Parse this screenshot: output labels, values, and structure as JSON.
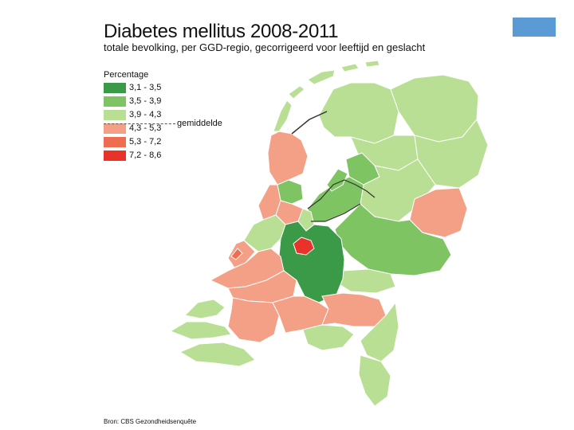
{
  "title": "Diabetes mellitus 2008-2011",
  "subtitle": "totale bevolking, per GGD-regio, gecorrigeerd voor leeftijd en geslacht",
  "legend": {
    "title": "Percentage",
    "items": [
      {
        "label": "3,1 - 3,5",
        "color": "#3a9a47"
      },
      {
        "label": "3,5 - 3,9",
        "color": "#7fc463"
      },
      {
        "label": "3,9 - 4,3",
        "color": "#b8df93"
      },
      {
        "label": "4,3 - 5,3",
        "color": "#f4a086"
      },
      {
        "label": "5,3 - 7,2",
        "color": "#ee6c50"
      },
      {
        "label": "7,2 - 8,6",
        "color": "#e8322a"
      }
    ],
    "average_label": "gemiddelde"
  },
  "source": "Bron: CBS Gezondheidsenquête",
  "accent_box_color": "#5b9bd5",
  "water_outline_color": "#333333"
}
